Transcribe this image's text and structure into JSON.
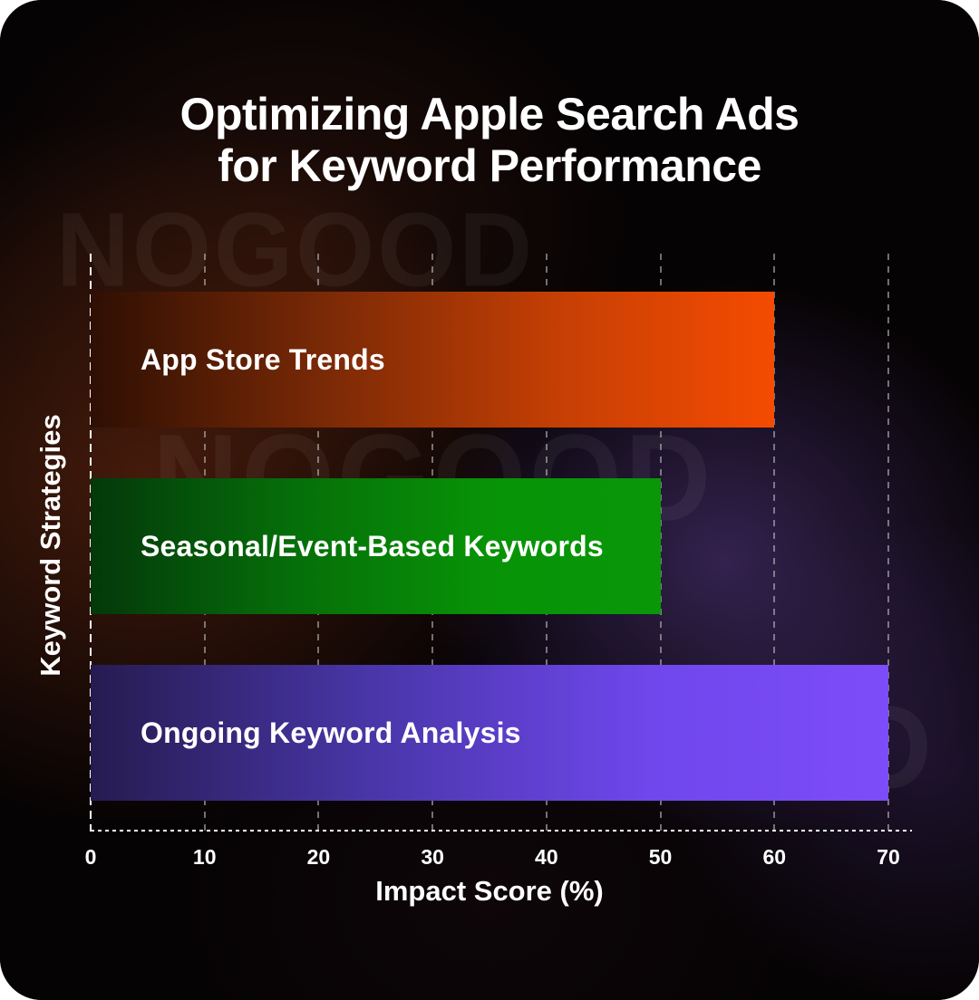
{
  "title": {
    "line1": "Optimizing Apple Search Ads",
    "line2": "for Keyword Performance"
  },
  "watermark": {
    "text": "NOGOOD"
  },
  "chart_data": {
    "type": "bar",
    "orientation": "horizontal",
    "title": "Optimizing Apple Search Ads for Keyword Performance",
    "xlabel": "Impact Score (%)",
    "ylabel": "Keyword Strategies",
    "xlim": [
      0,
      70
    ],
    "xticks": [
      "0",
      "10",
      "20",
      "30",
      "40",
      "50",
      "60",
      "70"
    ],
    "grid": "vertical-dashed",
    "legend": "none",
    "categories": [
      "App Store Trends",
      "Seasonal/Event-Based Keywords",
      "Ongoing Keyword Analysis"
    ],
    "values": [
      60,
      50,
      70
    ],
    "bars": [
      {
        "label": "App Store Trends",
        "value": 60,
        "slug": "app-store-trends",
        "gradient": [
          "#2e0f03",
          "#7c2a06",
          "#c84004",
          "#f54b02"
        ]
      },
      {
        "label": "Seasonal/Event-Based Keywords",
        "value": 50,
        "slug": "seasonal-event-based-keywords",
        "gradient": [
          "#04380a",
          "#056e09",
          "#089307",
          "#099708"
        ]
      },
      {
        "label": "Ongoing Keyword Analysis",
        "value": 70,
        "slug": "ongoing-keyword-analysis",
        "gradient": [
          "#261b50",
          "#4936a8",
          "#6f47ec",
          "#7d4cf9"
        ]
      }
    ],
    "colors": {
      "background": "#060304",
      "text": "#ffffff",
      "gridline": "#8a8a8a",
      "zero_line": "#ffffff"
    }
  }
}
